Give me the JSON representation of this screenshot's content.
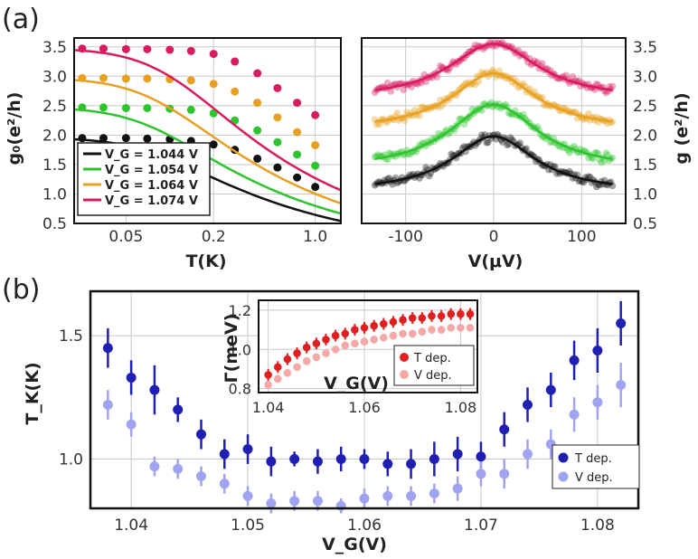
{
  "panel_labels": [
    "(a)",
    "(b)"
  ],
  "chart_data": [
    {
      "id": "a-left",
      "type": "scatter",
      "xlabel": "T(K)",
      "ylabel": "g₀(e²/h)",
      "xscale": "log",
      "xlim": [
        0.022,
        1.5
      ],
      "ylim": [
        0.5,
        3.65
      ],
      "xticks": [
        0.05,
        0.2,
        1.0
      ],
      "xtick_labels": [
        "0.05",
        "0.2",
        "1.0"
      ],
      "yticks": [
        0.5,
        1.0,
        1.5,
        2.0,
        2.5,
        3.0,
        3.5
      ],
      "ytick_labels": [
        "0.5",
        "1.0",
        "1.5",
        "2.0",
        "2.5",
        "3.0",
        "3.5"
      ],
      "grid": true,
      "legend_position": "bottom-left",
      "legend_entries": [
        "V_G = 1.044 V",
        "V_G = 1.054 V",
        "V_G = 1.064 V",
        "V_G = 1.074 V"
      ],
      "x": [
        0.025,
        0.035,
        0.05,
        0.07,
        0.1,
        0.14,
        0.2,
        0.28,
        0.4,
        0.55,
        0.75,
        1.0
      ],
      "series": [
        {
          "name": "1.044",
          "color": "#111111",
          "values": [
            1.95,
            1.95,
            1.95,
            1.94,
            1.93,
            1.9,
            1.84,
            1.75,
            1.6,
            1.45,
            1.28,
            1.12
          ],
          "fit": {
            "g0": 1.96,
            "TK": 0.38
          }
        },
        {
          "name": "1.054",
          "color": "#2ec42e",
          "values": [
            2.47,
            2.47,
            2.46,
            2.46,
            2.45,
            2.43,
            2.37,
            2.25,
            2.08,
            1.88,
            1.67,
            1.48
          ],
          "fit": {
            "g0": 2.48,
            "TK": 0.36
          }
        },
        {
          "name": "1.064",
          "color": "#e8a020",
          "values": [
            2.97,
            2.97,
            2.96,
            2.96,
            2.95,
            2.93,
            2.87,
            2.74,
            2.55,
            2.3,
            2.05,
            1.83
          ],
          "fit": {
            "g0": 2.98,
            "TK": 0.4
          }
        },
        {
          "name": "1.074",
          "color": "#d81b60",
          "values": [
            3.47,
            3.47,
            3.46,
            3.46,
            3.45,
            3.43,
            3.38,
            3.25,
            3.05,
            2.8,
            2.55,
            2.34
          ],
          "fit": {
            "g0": 3.48,
            "TK": 0.48
          }
        }
      ]
    },
    {
      "id": "a-right",
      "type": "scatter",
      "xlabel": "V(μV)",
      "ylabel": "g (e²/h)",
      "xlim": [
        -150,
        150
      ],
      "ylim": [
        0.5,
        3.65
      ],
      "xticks": [
        -100,
        0,
        100
      ],
      "xtick_labels": [
        "-100",
        "0",
        "100"
      ],
      "yticks": [
        0.5,
        1.0,
        1.5,
        2.0,
        2.5,
        3.0,
        3.5
      ],
      "ytick_labels": [
        "0.5",
        "1.0",
        "1.5",
        "2.0",
        "2.5",
        "3.0",
        "3.5"
      ],
      "grid": true,
      "x_range": [
        -135,
        135
      ],
      "series": [
        {
          "name": "1.044",
          "color": "#111111",
          "peak": 1.98,
          "base": 1.02,
          "width": 58
        },
        {
          "name": "1.054",
          "color": "#2ec42e",
          "peak": 2.52,
          "base": 1.4,
          "width": 62
        },
        {
          "name": "1.064",
          "color": "#e8a020",
          "peak": 3.05,
          "base": 2.08,
          "width": 58
        },
        {
          "name": "1.074",
          "color": "#d81b60",
          "peak": 3.55,
          "base": 2.6,
          "width": 62
        }
      ]
    },
    {
      "id": "b-main",
      "type": "scatter",
      "xlabel": "V_G(V)",
      "ylabel": "T_K(K)",
      "xlim": [
        1.0365,
        1.0835
      ],
      "ylim": [
        0.8,
        1.68
      ],
      "xticks": [
        1.04,
        1.05,
        1.06,
        1.07,
        1.08
      ],
      "xtick_labels": [
        "1.04",
        "1.05",
        "1.06",
        "1.07",
        "1.08"
      ],
      "yticks": [
        1.0,
        1.5
      ],
      "ytick_labels": [
        "1.0",
        "1.5"
      ],
      "grid": true,
      "legend_position": "bottom-right",
      "legend_entries": [
        "T dep.",
        "V dep."
      ],
      "x": [
        1.038,
        1.04,
        1.042,
        1.044,
        1.046,
        1.048,
        1.05,
        1.052,
        1.054,
        1.056,
        1.058,
        1.06,
        1.062,
        1.064,
        1.066,
        1.068,
        1.07,
        1.072,
        1.074,
        1.076,
        1.078,
        1.08,
        1.082
      ],
      "series": [
        {
          "name": "T dep.",
          "color": "#1f1fb4",
          "values": [
            1.45,
            1.33,
            1.28,
            1.2,
            1.1,
            1.02,
            1.04,
            0.99,
            1.0,
            0.99,
            1.0,
            1.0,
            0.98,
            0.98,
            1.0,
            1.02,
            1.01,
            1.12,
            1.22,
            1.28,
            1.4,
            1.44,
            1.55
          ],
          "errors": [
            0.08,
            0.07,
            0.1,
            0.05,
            0.06,
            0.06,
            0.06,
            0.06,
            0.03,
            0.05,
            0.05,
            0.04,
            0.05,
            0.06,
            0.07,
            0.07,
            0.06,
            0.07,
            0.07,
            0.07,
            0.08,
            0.09,
            0.09
          ]
        },
        {
          "name": "V dep.",
          "color": "#a0a4f0",
          "values": [
            1.22,
            1.14,
            0.97,
            0.96,
            0.93,
            0.9,
            0.85,
            0.82,
            0.83,
            0.83,
            0.81,
            0.84,
            0.85,
            0.85,
            0.86,
            0.88,
            0.94,
            0.94,
            1.02,
            1.06,
            1.18,
            1.23,
            1.3
          ],
          "errors": [
            0.06,
            0.05,
            0.04,
            0.04,
            0.04,
            0.04,
            0.04,
            0.04,
            0.04,
            0.04,
            0.03,
            0.04,
            0.04,
            0.04,
            0.04,
            0.05,
            0.05,
            0.06,
            0.06,
            0.06,
            0.07,
            0.07,
            0.09
          ]
        }
      ]
    },
    {
      "id": "b-inset",
      "type": "scatter",
      "xlabel": "V_G(V)",
      "ylabel": "Γ(meV)",
      "xlim": [
        1.038,
        1.0835
      ],
      "ylim": [
        0.78,
        1.25
      ],
      "xticks": [
        1.04,
        1.06,
        1.08
      ],
      "xtick_labels": [
        "1.04",
        "1.06",
        "1.08"
      ],
      "yticks": [
        0.8,
        1.0,
        1.2
      ],
      "ytick_labels": [
        "0.8",
        "1.0",
        "1.2"
      ],
      "grid": true,
      "legend_position": "bottom-right",
      "legend_entries": [
        "T dep.",
        "V dep."
      ],
      "x": [
        1.04,
        1.042,
        1.044,
        1.046,
        1.048,
        1.05,
        1.052,
        1.054,
        1.056,
        1.058,
        1.06,
        1.062,
        1.064,
        1.066,
        1.068,
        1.07,
        1.072,
        1.074,
        1.076,
        1.078,
        1.08,
        1.082
      ],
      "series": [
        {
          "name": "T dep.",
          "color": "#e02020",
          "values": [
            0.87,
            0.91,
            0.95,
            0.98,
            1.01,
            1.03,
            1.05,
            1.07,
            1.08,
            1.1,
            1.11,
            1.12,
            1.13,
            1.14,
            1.15,
            1.16,
            1.16,
            1.17,
            1.17,
            1.18,
            1.18,
            1.18
          ],
          "errors": [
            0.03,
            0.03,
            0.03,
            0.03,
            0.03,
            0.03,
            0.03,
            0.03,
            0.03,
            0.03,
            0.03,
            0.03,
            0.03,
            0.03,
            0.03,
            0.03,
            0.03,
            0.03,
            0.03,
            0.03,
            0.03,
            0.03
          ]
        },
        {
          "name": "V dep.",
          "color": "#f5a8a8",
          "values": [
            0.82,
            0.85,
            0.88,
            0.91,
            0.94,
            0.96,
            0.98,
            1.0,
            1.02,
            1.03,
            1.04,
            1.05,
            1.06,
            1.07,
            1.08,
            1.08,
            1.09,
            1.1,
            1.1,
            1.11,
            1.11,
            1.11
          ],
          "errors": [
            0.02,
            0.02,
            0.02,
            0.02,
            0.02,
            0.02,
            0.02,
            0.02,
            0.02,
            0.02,
            0.02,
            0.02,
            0.02,
            0.02,
            0.02,
            0.02,
            0.02,
            0.02,
            0.02,
            0.02,
            0.02,
            0.02
          ]
        }
      ]
    }
  ]
}
